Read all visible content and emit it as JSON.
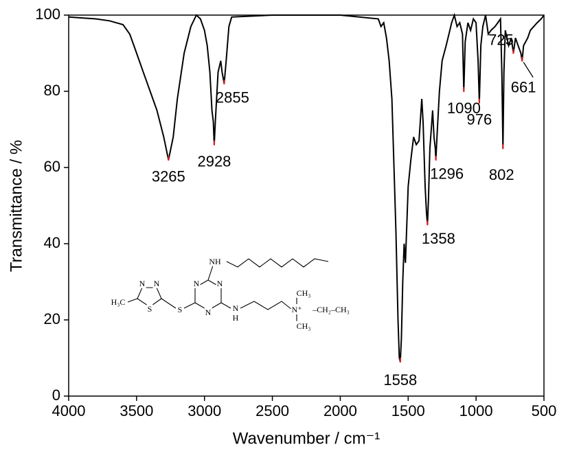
{
  "chart_data": {
    "type": "line",
    "xlabel": "Wavenumber / cm⁻¹",
    "ylabel": "Transmittance / %",
    "xlim": [
      4000,
      500
    ],
    "ylim": [
      0,
      100
    ],
    "xticks": [
      4000,
      3500,
      3000,
      2500,
      2000,
      1500,
      1000,
      500
    ],
    "yticks": [
      0,
      20,
      40,
      60,
      80,
      100
    ],
    "series": [
      {
        "color": "#000000",
        "x": [
          4000,
          3800,
          3700,
          3600,
          3550,
          3500,
          3450,
          3400,
          3350,
          3300,
          3265,
          3230,
          3200,
          3150,
          3100,
          3060,
          3030,
          3000,
          2980,
          2960,
          2945,
          2935,
          2928,
          2920,
          2900,
          2880,
          2870,
          2855,
          2840,
          2820,
          2800,
          2500,
          2000,
          1720,
          1700,
          1680,
          1660,
          1640,
          1620,
          1600,
          1590,
          1575,
          1565,
          1558,
          1550,
          1540,
          1530,
          1520,
          1500,
          1480,
          1460,
          1440,
          1420,
          1400,
          1390,
          1375,
          1365,
          1358,
          1350,
          1340,
          1320,
          1310,
          1300,
          1296,
          1285,
          1270,
          1250,
          1220,
          1200,
          1180,
          1160,
          1140,
          1120,
          1100,
          1090,
          1080,
          1060,
          1040,
          1020,
          1000,
          985,
          976,
          965,
          950,
          930,
          910,
          890,
          860,
          840,
          820,
          810,
          802,
          795,
          785,
          760,
          740,
          725,
          710,
          690,
          670,
          661,
          650,
          620,
          600,
          550,
          520,
          500
        ],
        "values": [
          99.5,
          99,
          98.5,
          97.5,
          95,
          90,
          85,
          80,
          75,
          68,
          62,
          68,
          78,
          90,
          97,
          100,
          99,
          96,
          92,
          85,
          75,
          72,
          66,
          72,
          85,
          88,
          85,
          82,
          88,
          97,
          99.5,
          100,
          100,
          99,
          97,
          98,
          94,
          88,
          78,
          55,
          43,
          20,
          10,
          9,
          15,
          30,
          40,
          35,
          55,
          62,
          68,
          66,
          67,
          78,
          72,
          55,
          48,
          45,
          52,
          65,
          75,
          68,
          65,
          62,
          70,
          80,
          88,
          92,
          95,
          98,
          100,
          97,
          98,
          95,
          80,
          93,
          98,
          96,
          99,
          98,
          88,
          77,
          92,
          97,
          100,
          95,
          96,
          97,
          98,
          99,
          85,
          65,
          85,
          96,
          92,
          94,
          90,
          94,
          92,
          90,
          88,
          92,
          94,
          96,
          98,
          99,
          100
        ]
      }
    ],
    "peaks": [
      {
        "label": "3265",
        "x": 3265,
        "y": 62
      },
      {
        "label": "2928",
        "x": 2928,
        "y": 66
      },
      {
        "label": "2855",
        "x": 2855,
        "y": 82
      },
      {
        "label": "1558",
        "x": 1558,
        "y": 9
      },
      {
        "label": "1358",
        "x": 1358,
        "y": 45
      },
      {
        "label": "1296",
        "x": 1296,
        "y": 62
      },
      {
        "label": "1090",
        "x": 1090,
        "y": 80
      },
      {
        "label": "976",
        "x": 976,
        "y": 77
      },
      {
        "label": "802",
        "x": 802,
        "y": 65
      },
      {
        "label": "725",
        "x": 725,
        "y": 90
      },
      {
        "label": "661",
        "x": 661,
        "y": 88
      }
    ]
  },
  "structure": {
    "labels": [
      "H₃C",
      "N",
      "N",
      "S",
      "S",
      "N",
      "N",
      "N",
      "NH",
      "N",
      "H",
      "CH₃",
      "N⁺",
      "–CH₂–CH₃",
      "CH₃"
    ]
  }
}
